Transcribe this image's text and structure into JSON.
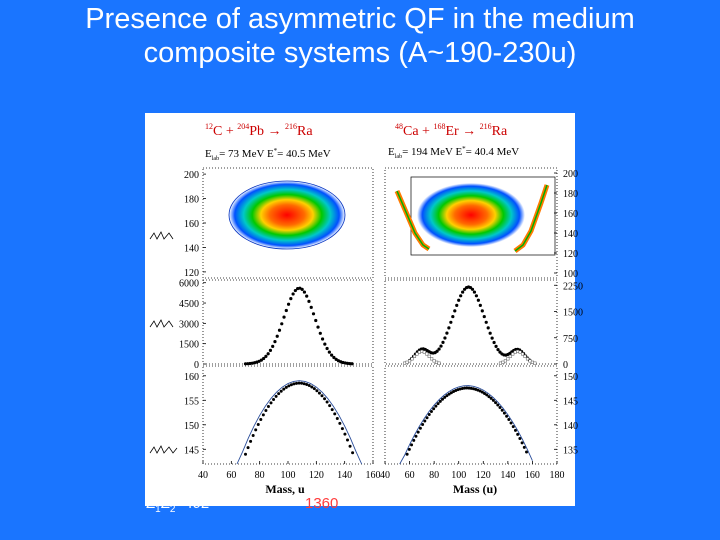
{
  "slide": {
    "title_line1": "Presence of asymmetric QF in the medium",
    "title_line2": "composite systems (A~190-230u)",
    "bottom_left": "Z1Z2=492",
    "bottom_left_parts": {
      "z": "Z",
      "sub1": "1",
      "z2": "Z",
      "sub2": "2",
      "rest": "=492"
    },
    "bottom_center": "1360"
  },
  "colors": {
    "background": "#1a75ff",
    "panel": "#ffffff",
    "highlight_text": "#ff3b3b"
  },
  "chart_data": [
    {
      "type": "heatmap",
      "panel": "left-top",
      "title_parts": {
        "p1": "12",
        "p2": "C + ",
        "p3": "204",
        "p4": "Pb → ",
        "p5": "216",
        "p6": "Ra"
      },
      "subtitle_parts": {
        "a": "E",
        "b": "lab",
        "c": "= 73 MeV  E",
        "d": "*",
        "e": "= 40.5 MeV"
      },
      "y_ticks": [
        "200",
        "180",
        "160",
        "140",
        "120"
      ],
      "ylim": [
        115,
        205
      ]
    },
    {
      "type": "heatmap",
      "panel": "right-top",
      "title_parts": {
        "p1": "48",
        "p2": "Ca + ",
        "p3": "168",
        "p4": "Er → ",
        "p5": "216",
        "p6": "Ra"
      },
      "subtitle_parts": {
        "a": "E",
        "b": "lab",
        "c": "= 194 MeV  E",
        "d": "*",
        "e": "= 40.4 MeV"
      },
      "y_ticks": [
        "200",
        "180",
        "160",
        "140",
        "120",
        "100"
      ],
      "ylim": [
        95,
        205
      ]
    },
    {
      "type": "scatter",
      "panel": "left-middle",
      "y_ticks": [
        "6000",
        "4500",
        "3000",
        "1500",
        "0"
      ],
      "ylim": [
        0,
        6200
      ],
      "xlim": [
        40,
        160
      ],
      "center": 108,
      "sigma": 11,
      "peak": 5600
    },
    {
      "type": "scatter",
      "panel": "right-middle",
      "y_ticks": [
        "2250",
        "1500",
        "750",
        "0"
      ],
      "ylim": [
        0,
        2400
      ],
      "xlim": [
        40,
        180
      ],
      "center": 108,
      "sigma": 13,
      "peak": 2200,
      "side_peaks": [
        {
          "center": 70,
          "peak": 400
        },
        {
          "center": 148,
          "peak": 400
        }
      ]
    },
    {
      "type": "scatter",
      "panel": "left-bottom",
      "y_ticks": [
        "160",
        "155",
        "150",
        "145"
      ],
      "ylim": [
        142,
        162
      ],
      "xlim": [
        40,
        160
      ],
      "xticks": [
        "40",
        "60",
        "80",
        "100",
        "120",
        "140",
        "160"
      ],
      "xlabel": "Mass, u"
    },
    {
      "type": "scatter",
      "panel": "right-bottom",
      "y_ticks": [
        "150",
        "145",
        "140",
        "135"
      ],
      "ylim": [
        132,
        152
      ],
      "xlim": [
        40,
        180
      ],
      "xticks": [
        "40",
        "60",
        "80",
        "100",
        "120",
        "140",
        "160",
        "180"
      ],
      "xlabel": "Mass (u)"
    }
  ]
}
